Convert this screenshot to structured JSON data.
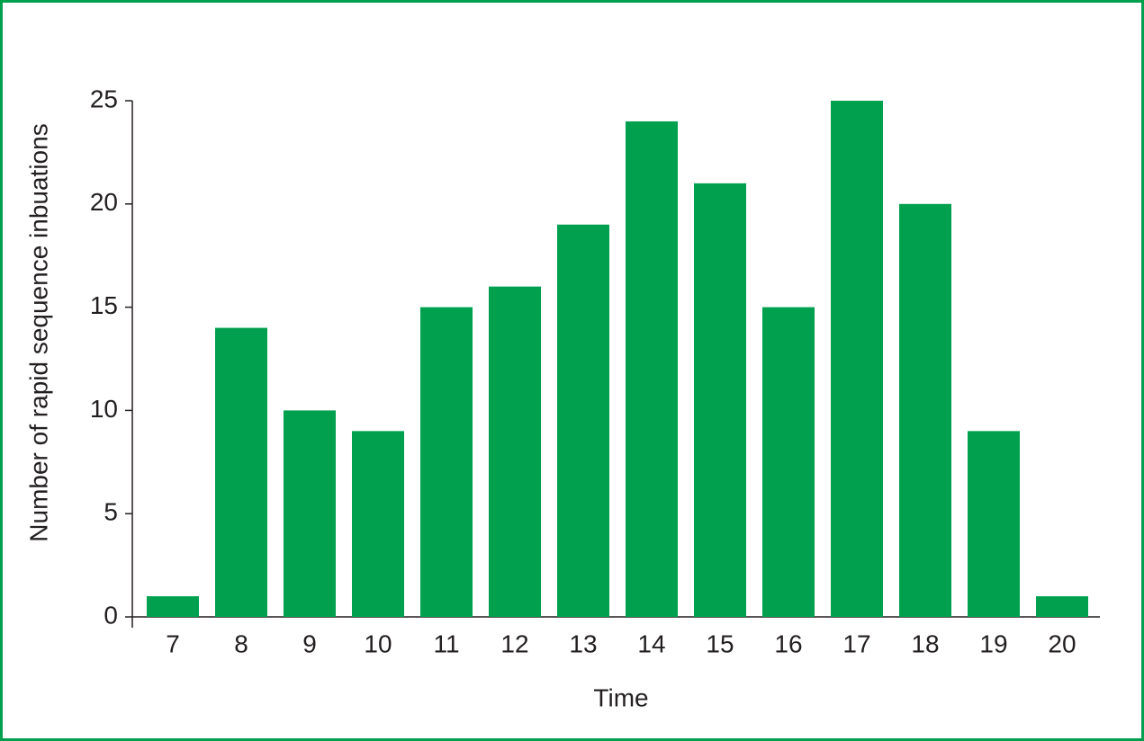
{
  "chart_data": {
    "type": "bar",
    "x_label": "Time",
    "y_label": "Number of rapid sequence inbuations",
    "categories": [
      "7",
      "8",
      "9",
      "10",
      "11",
      "12",
      "13",
      "14",
      "15",
      "16",
      "17",
      "18",
      "19",
      "20"
    ],
    "values": [
      1,
      14,
      10,
      9,
      15,
      16,
      19,
      24,
      21,
      15,
      25,
      20,
      9,
      1
    ],
    "color": "#00a04f",
    "ylim": [
      0,
      25
    ],
    "yticks": [
      0,
      5,
      10,
      15,
      20,
      25
    ],
    "grid": false
  }
}
